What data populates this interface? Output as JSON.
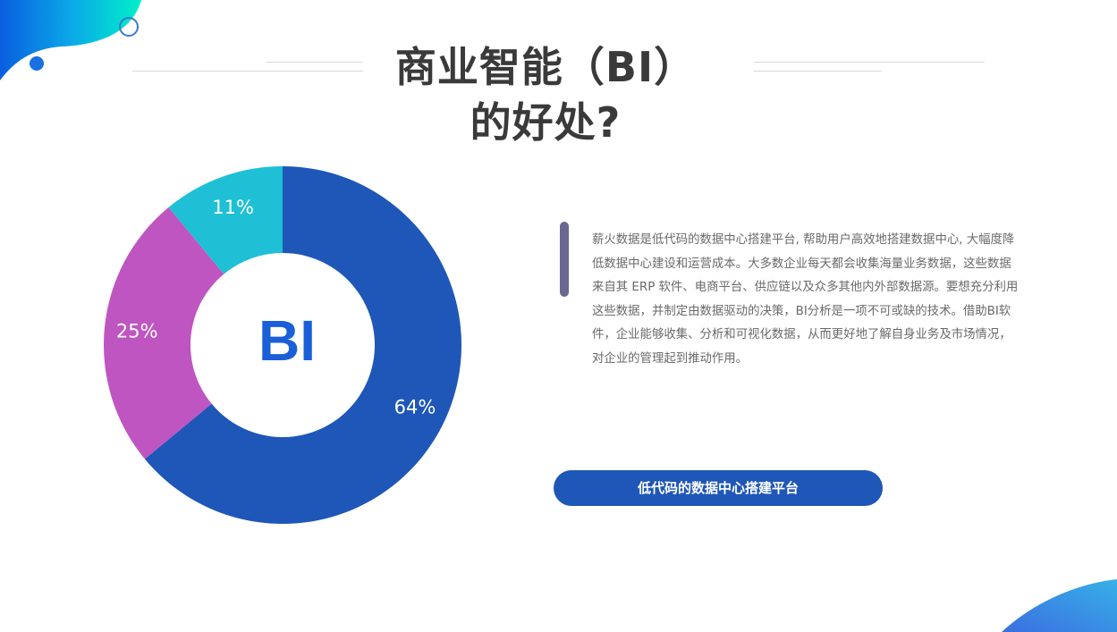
{
  "title_line1": "商业智能（BI）",
  "title_line2": "的好处?",
  "description": "薪火数据是低代码的数据中心搭建平台, 帮助用户高效地搭建数据中心, 大幅度降低数据中心建设和运营成本。大多数企业每天都会收集海量业务数据，这些数据来自其 ERP 软件、电商平台、供应链以及众多其他内外部数据源。要想充分利用这些数据，并制定由数据驱动的决策，BI分析是一项不可或缺的技术。借助BI软件，企业能够收集、分析和可视化数据，从而更好地了解自身业务及市场情况，对企业的管理起到推动作用。",
  "button_label": "低代码的数据中心搭建平台",
  "chart_data": {
    "type": "pie",
    "donut": true,
    "center_label": "BI",
    "values": [
      64,
      25,
      11
    ],
    "labels": [
      "64%",
      "25%",
      "11%"
    ],
    "colors": [
      "#1f57b8",
      "#bf55c1",
      "#1fc0d6"
    ]
  }
}
